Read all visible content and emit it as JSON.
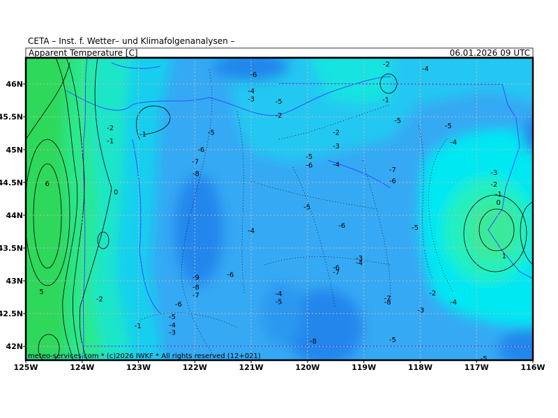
{
  "header": {
    "institution": "CETA – Inst. f. Wetter– und Klimafolgenanalysen –",
    "title": "Apparent Temperature [C]",
    "valid": "06.01.2026 09 UTC",
    "credit": "meteo-services.com * (c)2026 IWKF * All rights reserved (12+021)"
  },
  "map": {
    "xlim": [
      -125,
      -116
    ],
    "ylim": [
      41.79,
      46.4
    ],
    "grid": true,
    "xticks": [
      {
        "value": -125,
        "label": "125W"
      },
      {
        "value": -124,
        "label": "124W"
      },
      {
        "value": -123,
        "label": "123W"
      },
      {
        "value": -122,
        "label": "122W"
      },
      {
        "value": -121,
        "label": "121W"
      },
      {
        "value": -120,
        "label": "120W"
      },
      {
        "value": -119,
        "label": "119W"
      },
      {
        "value": -118,
        "label": "118W"
      },
      {
        "value": -117,
        "label": "117W"
      },
      {
        "value": -116,
        "label": "116W"
      }
    ],
    "yticks": [
      {
        "value": 42,
        "label": "42N"
      },
      {
        "value": 42.5,
        "label": "42.5N"
      },
      {
        "value": 43,
        "label": "43N"
      },
      {
        "value": 43.5,
        "label": "43.5N"
      },
      {
        "value": 44,
        "label": "44N"
      },
      {
        "value": 44.5,
        "label": "44.5N"
      },
      {
        "value": 45,
        "label": "45N"
      },
      {
        "value": 45.5,
        "label": "45.5N"
      },
      {
        "value": 46,
        "label": "46N"
      }
    ],
    "contour_labels": [
      {
        "lon": -120.96,
        "lat": 46.15,
        "value": -6
      },
      {
        "lon": -121.0,
        "lat": 45.9,
        "value": -4
      },
      {
        "lon": -121.0,
        "lat": 45.78,
        "value": -3
      },
      {
        "lon": -120.51,
        "lat": 45.74,
        "value": -5
      },
      {
        "lon": -120.51,
        "lat": 45.53,
        "value": -2
      },
      {
        "lon": -118.6,
        "lat": 46.31,
        "value": -2
      },
      {
        "lon": -117.91,
        "lat": 46.24,
        "value": -4
      },
      {
        "lon": -118.61,
        "lat": 45.77,
        "value": -1
      },
      {
        "lon": -118.4,
        "lat": 45.45,
        "value": -5
      },
      {
        "lon": -117.5,
        "lat": 45.37,
        "value": -5
      },
      {
        "lon": -117.41,
        "lat": 45.12,
        "value": -4
      },
      {
        "lon": -119.49,
        "lat": 45.27,
        "value": -2
      },
      {
        "lon": -119.49,
        "lat": 45.06,
        "value": -3
      },
      {
        "lon": -121.71,
        "lat": 45.27,
        "value": -5
      },
      {
        "lon": -121.89,
        "lat": 45.01,
        "value": -6
      },
      {
        "lon": -121.99,
        "lat": 44.82,
        "value": -7
      },
      {
        "lon": -121.98,
        "lat": 44.64,
        "value": -8
      },
      {
        "lon": -119.97,
        "lat": 44.9,
        "value": -5
      },
      {
        "lon": -119.97,
        "lat": 44.77,
        "value": -6
      },
      {
        "lon": -119.49,
        "lat": 44.78,
        "value": -4
      },
      {
        "lon": -118.49,
        "lat": 44.7,
        "value": -7
      },
      {
        "lon": -118.49,
        "lat": 44.53,
        "value": -6
      },
      {
        "lon": -116.69,
        "lat": 44.66,
        "value": -3
      },
      {
        "lon": -116.69,
        "lat": 44.48,
        "value": -2
      },
      {
        "lon": -116.61,
        "lat": 44.33,
        "value": -1
      },
      {
        "lon": -116.61,
        "lat": 44.2,
        "value": 0
      },
      {
        "lon": -120.01,
        "lat": 44.13,
        "value": -5
      },
      {
        "lon": -119.39,
        "lat": 43.85,
        "value": -6
      },
      {
        "lon": -118.09,
        "lat": 43.82,
        "value": -5
      },
      {
        "lon": -121.0,
        "lat": 43.77,
        "value": -4
      },
      {
        "lon": -116.51,
        "lat": 43.39,
        "value": 1
      },
      {
        "lon": -119.08,
        "lat": 43.35,
        "value": -3
      },
      {
        "lon": -119.08,
        "lat": 43.28,
        "value": -4
      },
      {
        "lon": -119.49,
        "lat": 43.21,
        "value": -6
      },
      {
        "lon": -119.49,
        "lat": 43.14,
        "value": -7
      },
      {
        "lon": -121.37,
        "lat": 43.1,
        "value": -6
      },
      {
        "lon": -121.98,
        "lat": 43.06,
        "value": -9
      },
      {
        "lon": -121.98,
        "lat": 42.91,
        "value": -8
      },
      {
        "lon": -121.98,
        "lat": 42.79,
        "value": -7
      },
      {
        "lon": -122.29,
        "lat": 42.65,
        "value": -6
      },
      {
        "lon": -120.51,
        "lat": 42.81,
        "value": -4
      },
      {
        "lon": -120.51,
        "lat": 42.69,
        "value": -5
      },
      {
        "lon": -118.58,
        "lat": 42.74,
        "value": -7
      },
      {
        "lon": -118.58,
        "lat": 42.68,
        "value": -8
      },
      {
        "lon": -117.78,
        "lat": 42.82,
        "value": -2
      },
      {
        "lon": -117.41,
        "lat": 42.68,
        "value": -4
      },
      {
        "lon": -117.99,
        "lat": 42.56,
        "value": -3
      },
      {
        "lon": -122.4,
        "lat": 42.46,
        "value": -5
      },
      {
        "lon": -122.4,
        "lat": 42.33,
        "value": -4
      },
      {
        "lon": -122.4,
        "lat": 42.22,
        "value": -3
      },
      {
        "lon": -123.01,
        "lat": 42.32,
        "value": -1
      },
      {
        "lon": -123.69,
        "lat": 42.73,
        "value": -2
      },
      {
        "lon": -123.5,
        "lat": 45.34,
        "value": -2
      },
      {
        "lon": -123.5,
        "lat": 45.14,
        "value": -1
      },
      {
        "lon": -122.92,
        "lat": 45.24,
        "value": -1
      },
      {
        "lon": -123.4,
        "lat": 44.36,
        "value": 0
      },
      {
        "lon": -124.62,
        "lat": 44.49,
        "value": 6
      },
      {
        "lon": -124.72,
        "lat": 42.84,
        "value": 5
      },
      {
        "lon": -119.9,
        "lat": 42.09,
        "value": -8
      },
      {
        "lon": -118.49,
        "lat": 42.11,
        "value": -5
      },
      {
        "lon": -116.87,
        "lat": 41.82,
        "value": -5
      }
    ]
  }
}
